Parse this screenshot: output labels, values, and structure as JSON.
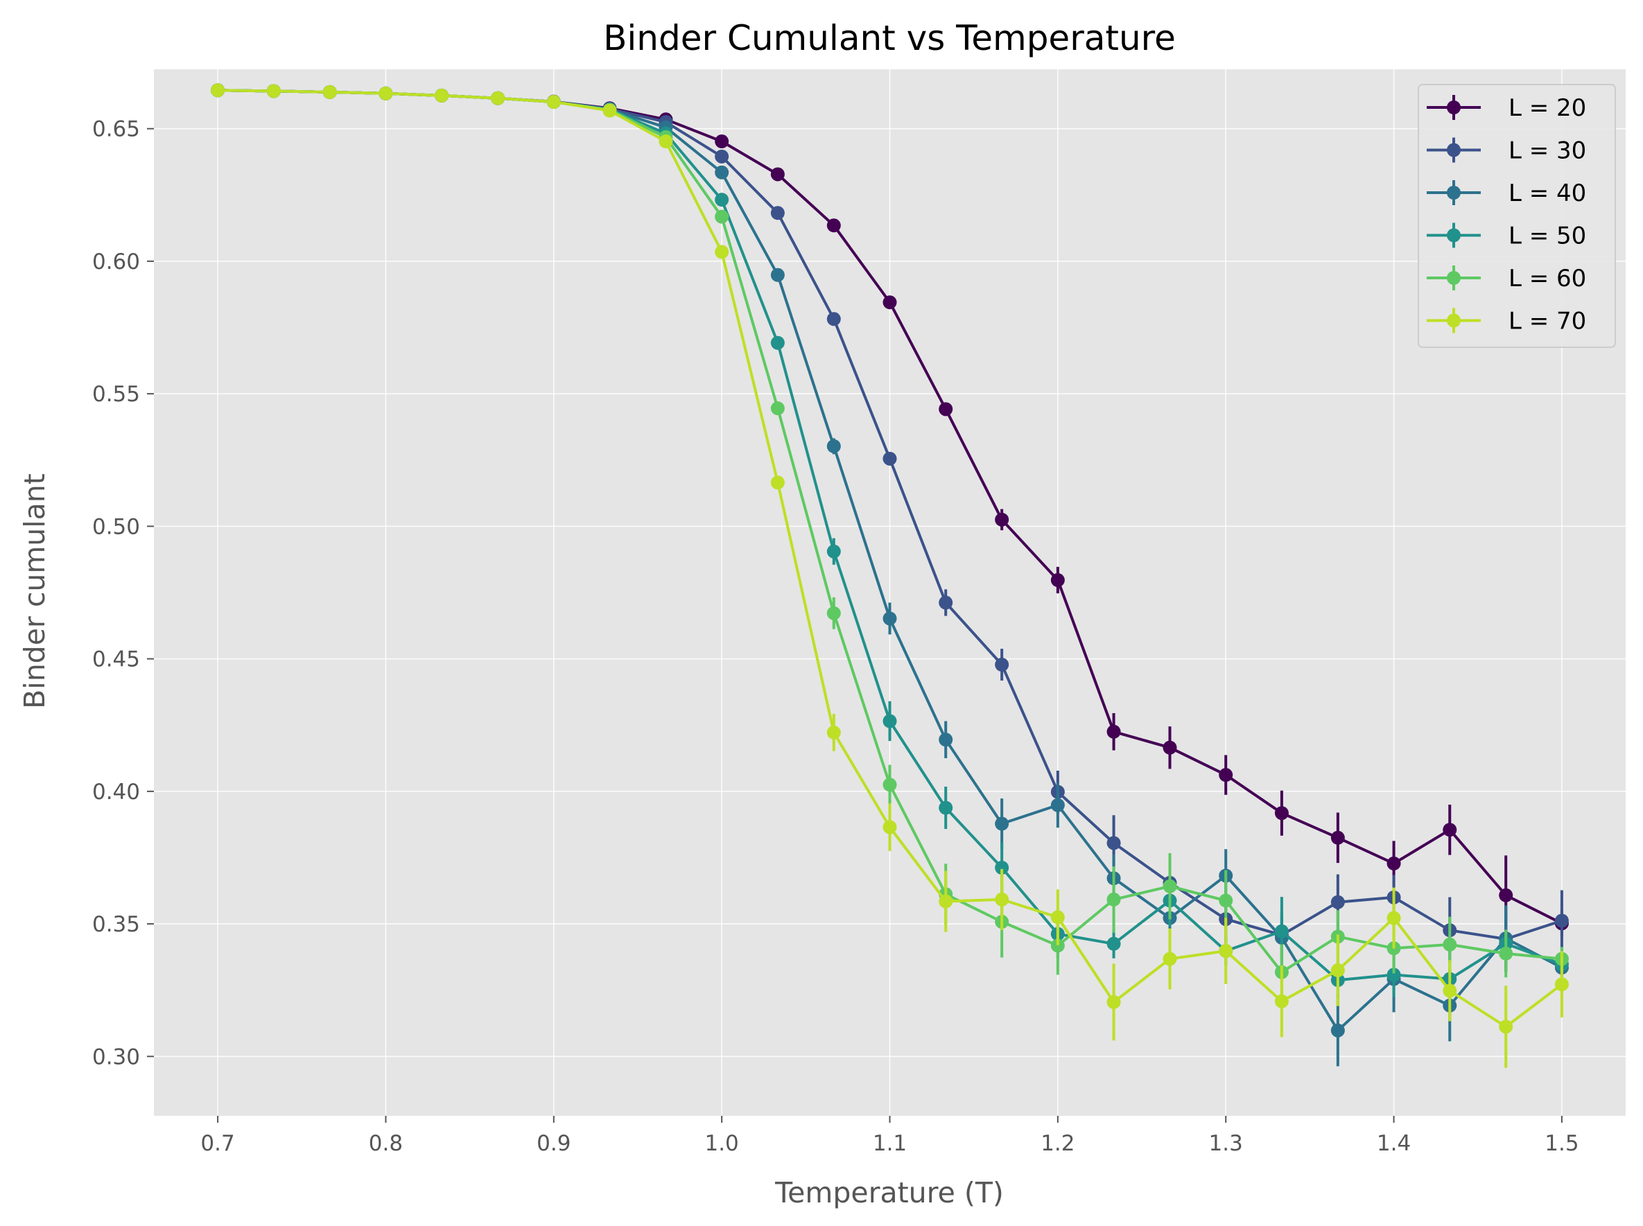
{
  "chart_data": {
    "type": "line",
    "title": "Binder Cumulant vs Temperature",
    "xlabel": "Temperature (T)",
    "ylabel": "Binder cumulant",
    "xlim": [
      0.662,
      1.538
    ],
    "ylim": [
      0.2776,
      0.6724
    ],
    "xticks": [
      "0.7",
      "0.8",
      "0.9",
      "1.0",
      "1.1",
      "1.2",
      "1.3",
      "1.4",
      "1.5"
    ],
    "yticks": [
      "0.30",
      "0.35",
      "0.40",
      "0.45",
      "0.50",
      "0.55",
      "0.60",
      "0.65"
    ],
    "grid": true,
    "legend_position": "top-right",
    "background": "#e5e5e5",
    "x": [
      0.7,
      0.7333,
      0.7667,
      0.8,
      0.8333,
      0.8667,
      0.9,
      0.9333,
      0.9667,
      1.0,
      1.0333,
      1.0667,
      1.1,
      1.1333,
      1.1667,
      1.2,
      1.2333,
      1.2667,
      1.3,
      1.3333,
      1.3667,
      1.4,
      1.4333,
      1.4667,
      1.5
    ],
    "series": [
      {
        "name": "L = 20",
        "color": "#440154",
        "values": [
          0.6645,
          0.6642,
          0.6638,
          0.6633,
          0.6625,
          0.6615,
          0.6602,
          0.6577,
          0.6535,
          0.6452,
          0.6328,
          0.6135,
          0.5845,
          0.5442,
          0.5025,
          0.4797,
          0.4225,
          0.4165,
          0.4062,
          0.3918,
          0.3825,
          0.3728,
          0.3855,
          0.3608,
          0.3502
        ],
        "errors": [
          0.0005,
          0.0005,
          0.0005,
          0.0005,
          0.0005,
          0.0005,
          0.0005,
          0.0005,
          0.0008,
          0.001,
          0.0012,
          0.0015,
          0.002,
          0.0025,
          0.004,
          0.005,
          0.007,
          0.008,
          0.0075,
          0.0085,
          0.0095,
          0.0085,
          0.0095,
          0.015,
          0.005
        ]
      },
      {
        "name": "L = 30",
        "color": "#3b528b",
        "values": [
          0.6645,
          0.6642,
          0.6638,
          0.6633,
          0.6625,
          0.6615,
          0.6601,
          0.6575,
          0.6525,
          0.6395,
          0.6182,
          0.5782,
          0.5255,
          0.4712,
          0.4478,
          0.3998,
          0.3805,
          0.3655,
          0.3518,
          0.3458,
          0.3582,
          0.36,
          0.3476,
          0.3443,
          0.3512
        ],
        "errors": [
          0.0005,
          0.0005,
          0.0005,
          0.0005,
          0.0005,
          0.0005,
          0.0005,
          0.0005,
          0.0008,
          0.0012,
          0.0015,
          0.002,
          0.0025,
          0.005,
          0.006,
          0.008,
          0.0105,
          0.0095,
          0.0085,
          0.0085,
          0.0105,
          0.0085,
          0.0125,
          0.0125,
          0.0115
        ]
      },
      {
        "name": "L = 40",
        "color": "#2c728e",
        "values": [
          0.6645,
          0.6642,
          0.6638,
          0.6633,
          0.6625,
          0.6615,
          0.6601,
          0.6573,
          0.6505,
          0.6335,
          0.5948,
          0.5302,
          0.4652,
          0.4195,
          0.3878,
          0.3948,
          0.3672,
          0.3522,
          0.3682,
          0.3448,
          0.3098,
          0.3292,
          0.3192,
          0.3445,
          0.3335
        ],
        "errors": [
          0.0005,
          0.0005,
          0.0005,
          0.0005,
          0.0005,
          0.0005,
          0.0005,
          0.0006,
          0.001,
          0.0015,
          0.002,
          0.003,
          0.006,
          0.007,
          0.0095,
          0.0085,
          0.009,
          0.011,
          0.01,
          0.009,
          0.0135,
          0.0125,
          0.0135,
          0.0125,
          0.0035
        ]
      },
      {
        "name": "L = 50",
        "color": "#21918c",
        "values": [
          0.6645,
          0.6642,
          0.6638,
          0.6633,
          0.6625,
          0.6615,
          0.6601,
          0.6572,
          0.6482,
          0.6232,
          0.5692,
          0.4905,
          0.4265,
          0.3938,
          0.3712,
          0.3462,
          0.3425,
          0.3588,
          0.3398,
          0.3472,
          0.3288,
          0.3308,
          0.3292,
          0.3425,
          0.3348
        ],
        "errors": [
          0.0005,
          0.0005,
          0.0005,
          0.0005,
          0.0005,
          0.0005,
          0.0005,
          0.0006,
          0.0012,
          0.0015,
          0.002,
          0.005,
          0.0075,
          0.008,
          0.0095,
          0.009,
          0.0055,
          0.01,
          0.0055,
          0.013,
          0.0065,
          0.0085,
          0.004,
          0.0045,
          0.0045
        ]
      },
      {
        "name": "L = 60",
        "color": "#5ec962",
        "values": [
          0.6645,
          0.6642,
          0.6638,
          0.6633,
          0.6625,
          0.6615,
          0.6601,
          0.6571,
          0.6468,
          0.6168,
          0.5445,
          0.4672,
          0.4025,
          0.3612,
          0.3508,
          0.3418,
          0.3592,
          0.3642,
          0.3588,
          0.3318,
          0.3452,
          0.3408,
          0.3422,
          0.3388,
          0.3368
        ],
        "errors": [
          0.0005,
          0.0005,
          0.0005,
          0.0005,
          0.0005,
          0.0005,
          0.0005,
          0.0006,
          0.0012,
          0.0015,
          0.002,
          0.006,
          0.0075,
          0.0115,
          0.0135,
          0.011,
          0.0125,
          0.0125,
          0.0115,
          0.0105,
          0.01,
          0.0095,
          0.0105,
          0.009,
          0.0045
        ]
      },
      {
        "name": "L = 70",
        "color": "#bddf26",
        "values": [
          0.6645,
          0.6642,
          0.6638,
          0.6633,
          0.6625,
          0.6615,
          0.6601,
          0.6568,
          0.6452,
          0.6035,
          0.5165,
          0.4222,
          0.3865,
          0.3585,
          0.3592,
          0.3525,
          0.3205,
          0.3368,
          0.3398,
          0.3208,
          0.3325,
          0.3522,
          0.3248,
          0.3112,
          0.3272
        ],
        "errors": [
          0.0005,
          0.0005,
          0.0005,
          0.0005,
          0.0005,
          0.0005,
          0.0005,
          0.0006,
          0.0012,
          0.0015,
          0.0025,
          0.007,
          0.009,
          0.0115,
          0.0115,
          0.0105,
          0.0145,
          0.0115,
          0.0125,
          0.0135,
          0.0135,
          0.0115,
          0.0115,
          0.0155,
          0.0125
        ]
      }
    ]
  }
}
